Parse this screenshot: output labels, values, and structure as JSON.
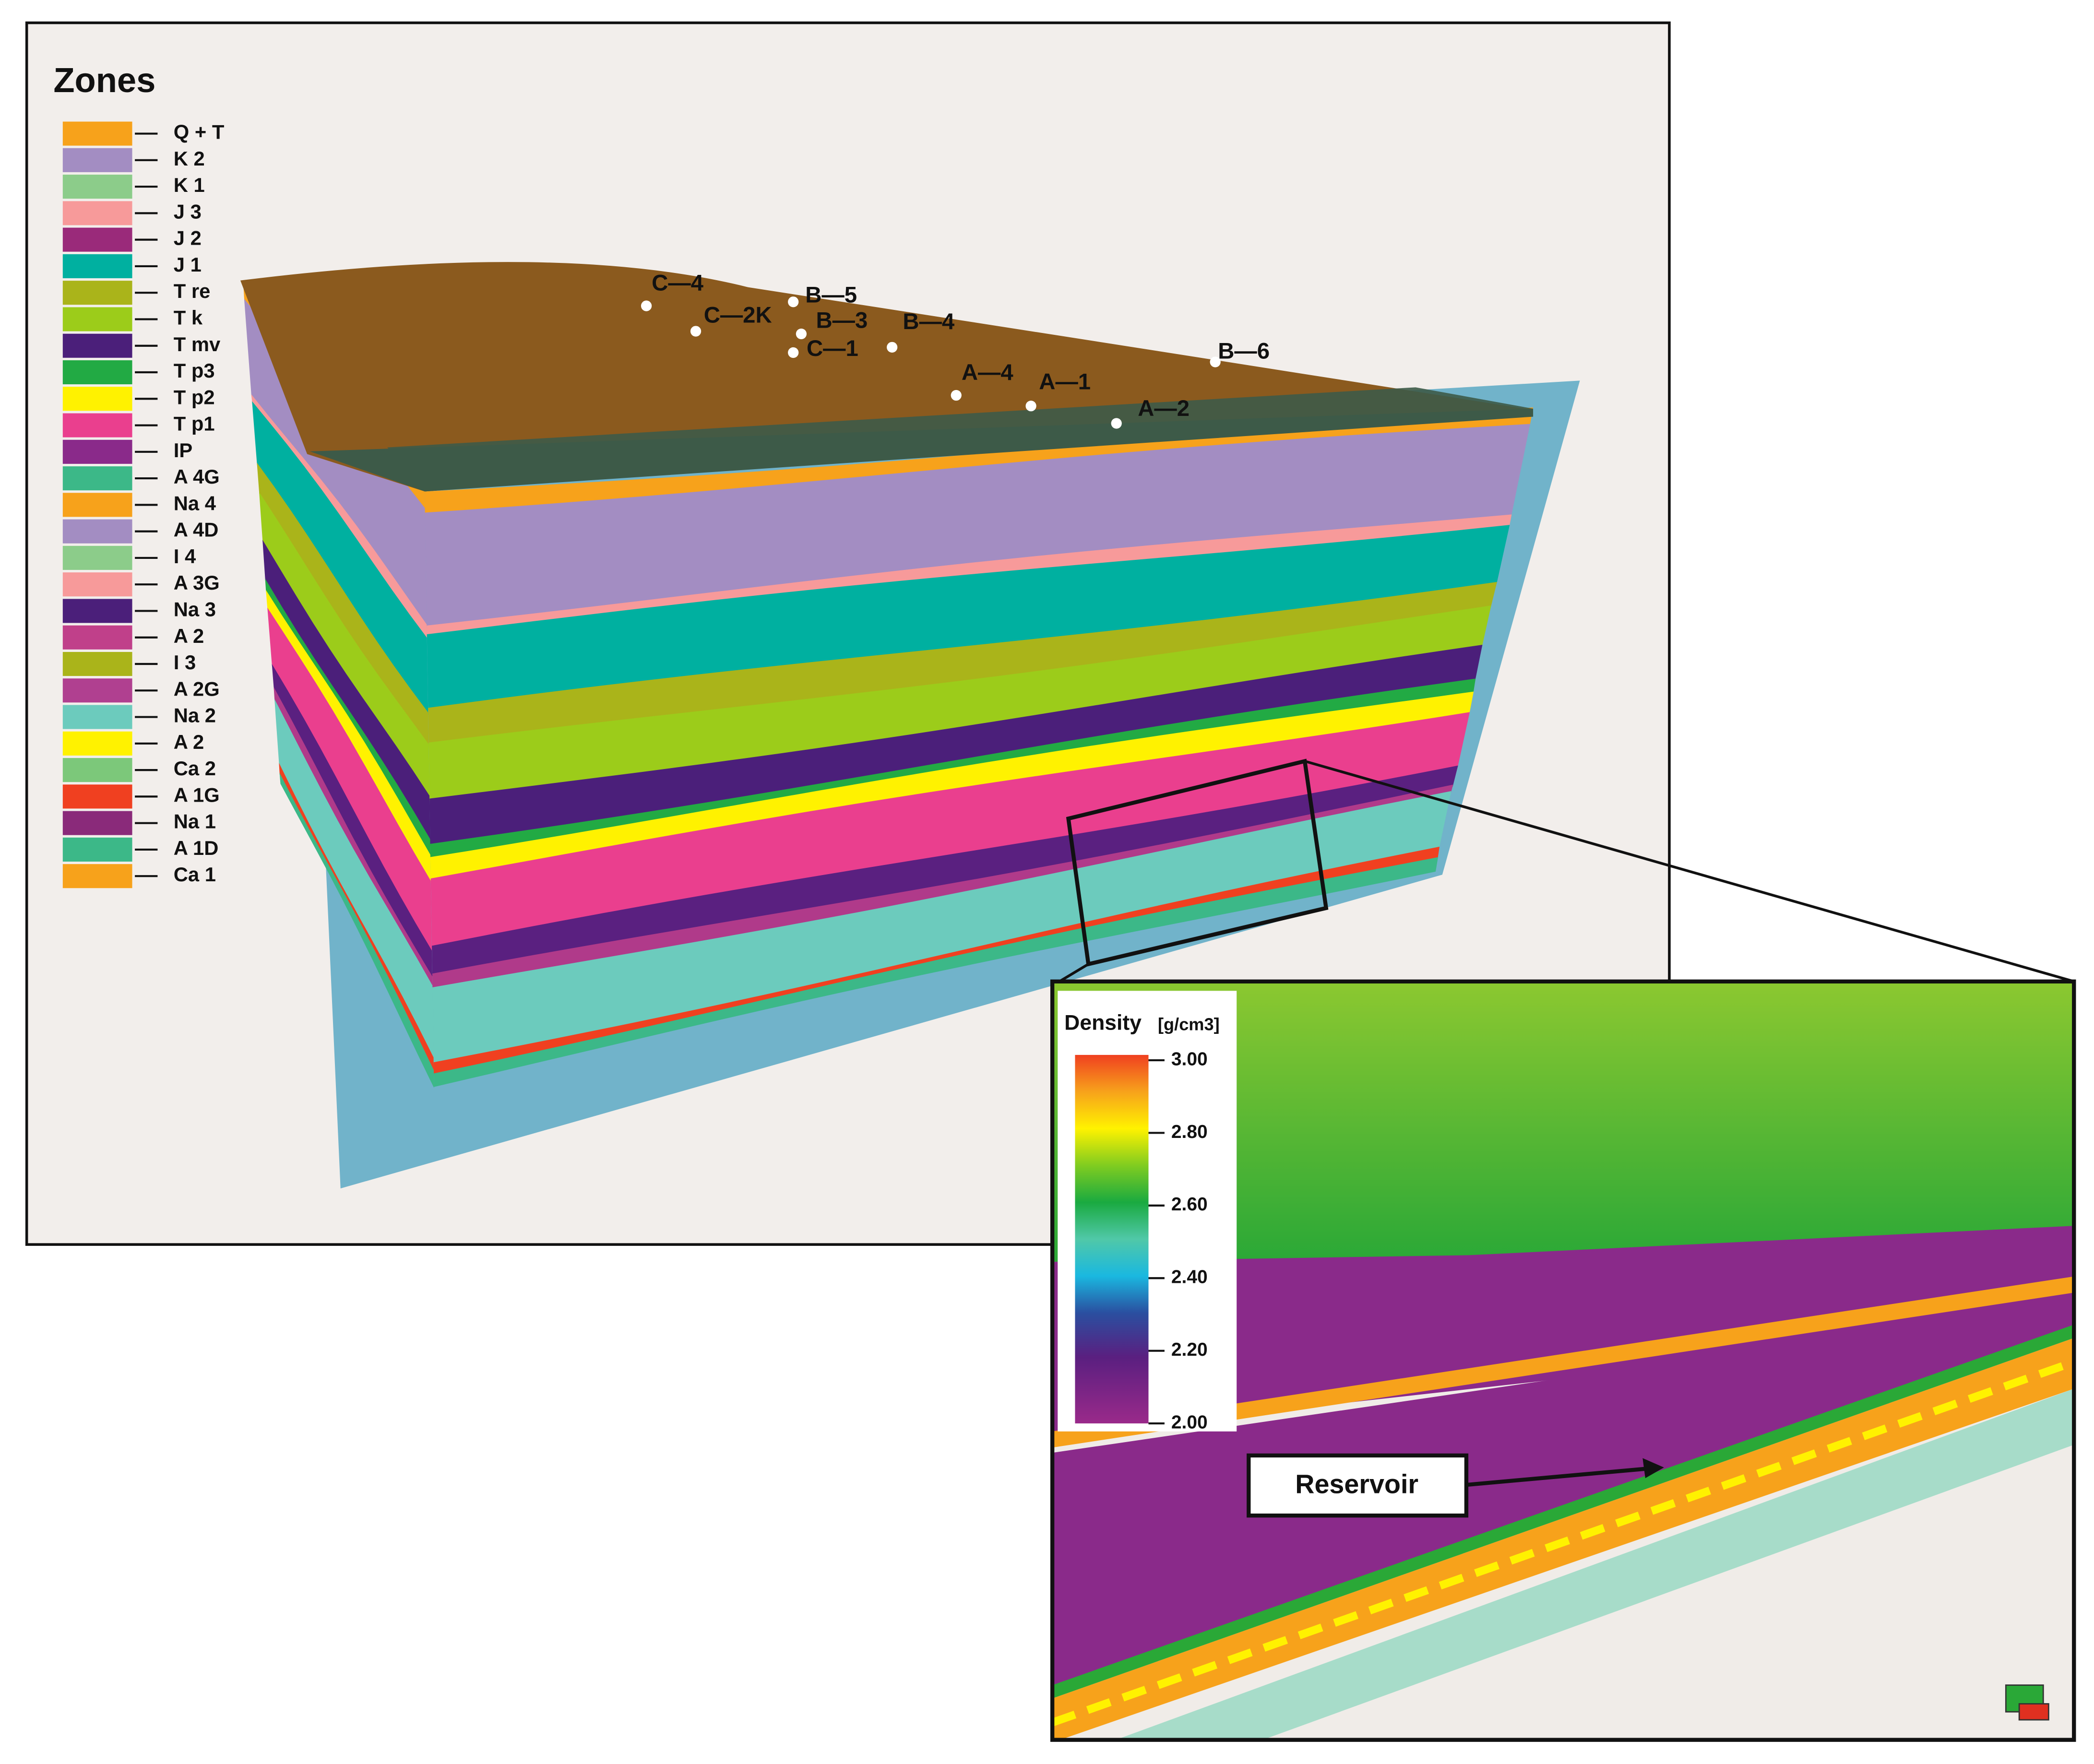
{
  "legend": {
    "title": "Zones",
    "items": [
      {
        "label": "Q + T",
        "color": "#f7a21b"
      },
      {
        "label": "K 2",
        "color": "#a38dc2"
      },
      {
        "label": "K 1",
        "color": "#8ccc8a"
      },
      {
        "label": "J 3",
        "color": "#f79a9a"
      },
      {
        "label": "J 2",
        "color": "#9a2a7a"
      },
      {
        "label": "J 1",
        "color": "#00b0a0"
      },
      {
        "label": "T re",
        "color": "#aab41a"
      },
      {
        "label": "T k",
        "color": "#9ccc1a"
      },
      {
        "label": "T mv",
        "color": "#4b1f7a"
      },
      {
        "label": "T p3",
        "color": "#22aa44"
      },
      {
        "label": "T p2",
        "color": "#fff200"
      },
      {
        "label": "T p1",
        "color": "#ea3f8e"
      },
      {
        "label": "IP",
        "color": "#8a2a8a"
      },
      {
        "label": "A 4G",
        "color": "#3cb888"
      },
      {
        "label": "Na 4",
        "color": "#f7a21b"
      },
      {
        "label": "A 4D",
        "color": "#a38dc2"
      },
      {
        "label": "I 4",
        "color": "#8ccc8a"
      },
      {
        "label": "A 3G",
        "color": "#f79a9a"
      },
      {
        "label": "Na 3",
        "color": "#4b1f7a"
      },
      {
        "label": "A 2",
        "color": "#c0408a"
      },
      {
        "label": "I 3",
        "color": "#aab41a"
      },
      {
        "label": "A 2G",
        "color": "#b04090"
      },
      {
        "label": "Na 2",
        "color": "#6ccbbd"
      },
      {
        "label": "A 2",
        "color": "#fff200"
      },
      {
        "label": "Ca 2",
        "color": "#7cc87a"
      },
      {
        "label": "A 1G",
        "color": "#f04020"
      },
      {
        "label": "Na 1",
        "color": "#8a2a7a"
      },
      {
        "label": "A 1D",
        "color": "#3cb888"
      },
      {
        "label": "Ca 1",
        "color": "#f7a21b"
      }
    ]
  },
  "wells": [
    "C—4",
    "C—2K",
    "B—5",
    "B—3",
    "C—1",
    "B—4",
    "A—4",
    "A—1",
    "B—6",
    "A—2"
  ],
  "inset": {
    "colorbar": {
      "title": "Density",
      "unit": "[g/cm3]",
      "ticks": [
        {
          "value": 3,
          "label": "3.00"
        },
        {
          "value": 2.8,
          "label": "2.80"
        },
        {
          "value": 2.6,
          "label": "2.60"
        },
        {
          "value": 2.4,
          "label": "2.40"
        },
        {
          "value": 2.2,
          "label": "2.20"
        },
        {
          "value": 2,
          "label": "2.00"
        }
      ]
    },
    "annotation": "Reservoir"
  }
}
